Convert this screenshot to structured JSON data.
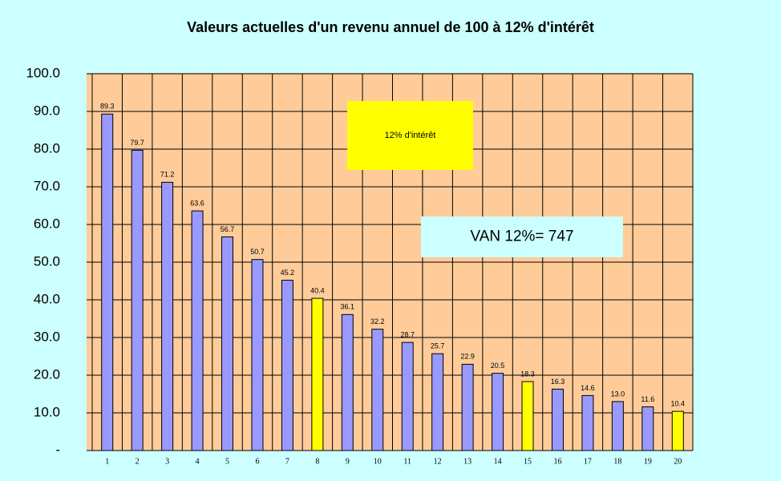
{
  "chart_data": {
    "type": "bar",
    "title": "Valeurs actuelles d'un revenu annuel de 100 à 12% d'intérêt",
    "categories": [
      "1",
      "2",
      "3",
      "4",
      "5",
      "6",
      "7",
      "8",
      "9",
      "10",
      "11",
      "12",
      "13",
      "14",
      "15",
      "16",
      "17",
      "18",
      "19",
      "20"
    ],
    "values": [
      89.3,
      79.7,
      71.2,
      63.6,
      56.7,
      50.7,
      45.2,
      40.4,
      36.1,
      32.2,
      28.7,
      25.7,
      22.9,
      20.5,
      18.3,
      16.3,
      14.6,
      13.0,
      11.6,
      10.4
    ],
    "value_labels": [
      "89.3",
      "79.7",
      "71.2",
      "63.6",
      "56.7",
      "50.7",
      "45.2",
      "40.4",
      "36.1",
      "32.2",
      "28.7",
      "25.7",
      "22.9",
      "20.5",
      "18.3",
      "16.3",
      "14.6",
      "13.0",
      "11.6",
      "10.4"
    ],
    "colors": [
      "#9999ff",
      "#9999ff",
      "#9999ff",
      "#9999ff",
      "#9999ff",
      "#9999ff",
      "#9999ff",
      "#ffff00",
      "#9999ff",
      "#9999ff",
      "#9999ff",
      "#9999ff",
      "#9999ff",
      "#9999ff",
      "#ffff00",
      "#9999ff",
      "#9999ff",
      "#9999ff",
      "#9999ff",
      "#ffff00"
    ],
    "ylim": [
      0,
      100
    ],
    "yticks": [
      {
        "value": 0,
        "label": "-"
      },
      {
        "value": 10,
        "label": "10.0"
      },
      {
        "value": 20,
        "label": "20.0"
      },
      {
        "value": 30,
        "label": "30.0"
      },
      {
        "value": 40,
        "label": "40.0"
      },
      {
        "value": 50,
        "label": "50.0"
      },
      {
        "value": 60,
        "label": "60.0"
      },
      {
        "value": 70,
        "label": "70.0"
      },
      {
        "value": 80,
        "label": "80.0"
      },
      {
        "value": 90,
        "label": "90.0"
      },
      {
        "value": 100,
        "label": "100.0"
      }
    ],
    "grid": true,
    "annotations": [
      {
        "text": "12% d'intérêt"
      },
      {
        "text": "VAN 12%= 747"
      }
    ]
  }
}
